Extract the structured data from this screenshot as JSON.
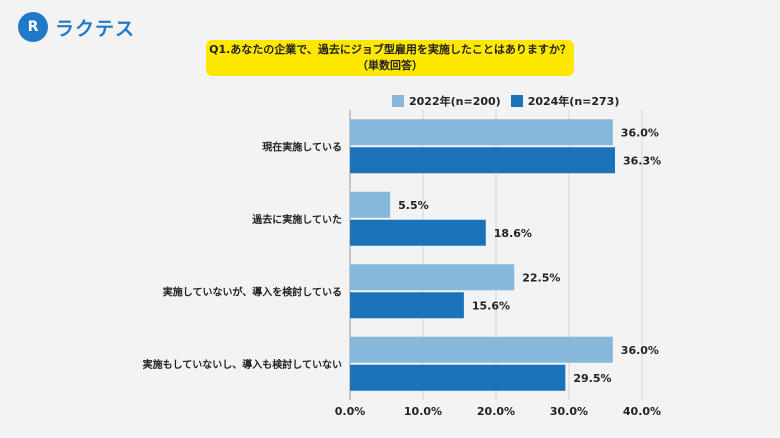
{
  "brand": {
    "logo_mark": "R",
    "name": "ラクテス"
  },
  "title": {
    "line1": "Q1.あなたの企業で、過去にジョブ型雇用を実施したことはありますか？",
    "line2": "（単数回答）"
  },
  "colors": {
    "series_2022": "#86b8dc",
    "series_2024": "#1a72b8",
    "title_bg": "#ffe800",
    "brand": "#1f78c8"
  },
  "chart_data": {
    "type": "bar",
    "orientation": "horizontal",
    "categories": [
      "現在実施している",
      "過去に実施していた",
      "実施していないが、導入を検討している",
      "実施もしていないし、導入も検討していない"
    ],
    "series": [
      {
        "name": "2022年(n=200)",
        "values": [
          36.0,
          5.5,
          22.5,
          36.0
        ],
        "labels": [
          "36.0%",
          "5.5%",
          "22.5%",
          "36.0%"
        ]
      },
      {
        "name": "2024年(n=273)",
        "values": [
          36.3,
          18.6,
          15.6,
          29.5
        ],
        "labels": [
          "36.3%",
          "18.6%",
          "15.6%",
          "29.5%"
        ]
      }
    ],
    "xlim": [
      0,
      40
    ],
    "x_ticks": [
      "0.0%",
      "10.0%",
      "20.0%",
      "30.0%",
      "40.0%"
    ],
    "grid": true,
    "legend_position": "top"
  }
}
